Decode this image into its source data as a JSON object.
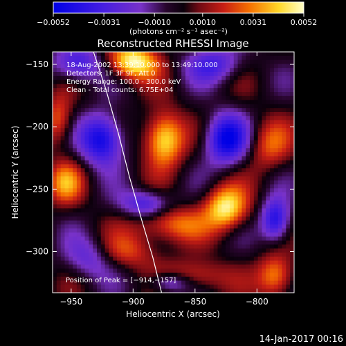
{
  "chart_data": {
    "type": "heatmap",
    "title": "Reconstructed RHESSI Image",
    "xlabel": "Heliocentric X (arcsec)",
    "ylabel": "Heliocentric Y (arcsec)",
    "xlim": [
      -965,
      -770
    ],
    "ylim": [
      -333,
      -140
    ],
    "x_ticks": [
      -950,
      -900,
      -850,
      -800
    ],
    "x_tick_labels": [
      "−950",
      "−900",
      "−850",
      "−800"
    ],
    "y_ticks": [
      -150,
      -200,
      -250,
      -300
    ],
    "y_tick_labels": [
      "−150",
      "−200",
      "−250",
      "−300"
    ],
    "colorbar": {
      "range": [
        -0.0052,
        0.0052
      ],
      "ticks": [
        -0.0052,
        -0.0031,
        -0.001,
        0.001,
        0.0031,
        0.0052
      ],
      "tick_labels": [
        "−0.0052",
        "−0.0031",
        "−0.0010",
        "0.0010",
        "0.0031",
        "0.0052"
      ],
      "label": "(photons cm⁻² s⁻¹ asec⁻²)",
      "colors": [
        "#0000f0",
        "#7a2bd6",
        "#1a001a",
        "#c02020",
        "#ff8000",
        "#ffffc0"
      ]
    },
    "annotations": [
      "18-Aug-2002 13:39:10.000 to 13:49:10.000",
      "Detectors: 1F 3F 9F, Att 0",
      "Energy Range: 100.0 - 300.0 keV",
      "Clean - Total counts: 6.75E+04"
    ],
    "peak_label": "Position of Peak = [−914,−157]",
    "peak": [
      -914,
      -157
    ],
    "limb_curve": [
      [
        -932,
        -140
      ],
      [
        -922,
        -170
      ],
      [
        -912,
        -205
      ],
      [
        -903,
        -240
      ],
      [
        -893,
        -275
      ],
      [
        -884,
        -305
      ],
      [
        -877,
        -333
      ]
    ],
    "sources": [
      {
        "x": -900,
        "y": -148,
        "value": 0.0052,
        "sx": 14,
        "sy": 10
      },
      {
        "x": -875,
        "y": -210,
        "value": 0.005,
        "sx": 11,
        "sy": 15
      },
      {
        "x": -825,
        "y": -265,
        "value": 0.0048,
        "sx": 12,
        "sy": 12
      },
      {
        "x": -955,
        "y": -245,
        "value": 0.003,
        "sx": 10,
        "sy": 12
      },
      {
        "x": -960,
        "y": -195,
        "value": 0.0028,
        "sx": 8,
        "sy": 14
      },
      {
        "x": -870,
        "y": -278,
        "value": 0.003,
        "sx": 20,
        "sy": 10
      },
      {
        "x": -850,
        "y": -320,
        "value": 0.0026,
        "sx": 18,
        "sy": 9
      },
      {
        "x": -785,
        "y": -320,
        "value": 0.0036,
        "sx": 10,
        "sy": 12
      },
      {
        "x": -790,
        "y": -215,
        "value": 0.0024,
        "sx": 12,
        "sy": 14
      },
      {
        "x": -905,
        "y": -300,
        "value": 0.0022,
        "sx": 18,
        "sy": 10
      },
      {
        "x": -925,
        "y": -210,
        "value": -0.0052,
        "sx": 12,
        "sy": 14
      },
      {
        "x": -825,
        "y": -210,
        "value": -0.005,
        "sx": 12,
        "sy": 14
      },
      {
        "x": -785,
        "y": -275,
        "value": -0.0045,
        "sx": 8,
        "sy": 12
      },
      {
        "x": -945,
        "y": -150,
        "value": -0.0035,
        "sx": 14,
        "sy": 10
      },
      {
        "x": -835,
        "y": -150,
        "value": -0.003,
        "sx": 16,
        "sy": 10
      },
      {
        "x": -890,
        "y": -262,
        "value": -0.0034,
        "sx": 14,
        "sy": 8
      },
      {
        "x": -935,
        "y": -305,
        "value": -0.0025,
        "sx": 14,
        "sy": 12
      },
      {
        "x": -870,
        "y": -325,
        "value": -0.0032,
        "sx": 12,
        "sy": 6
      }
    ]
  },
  "footer_timestamp": "14-Jan-2017 00:16"
}
